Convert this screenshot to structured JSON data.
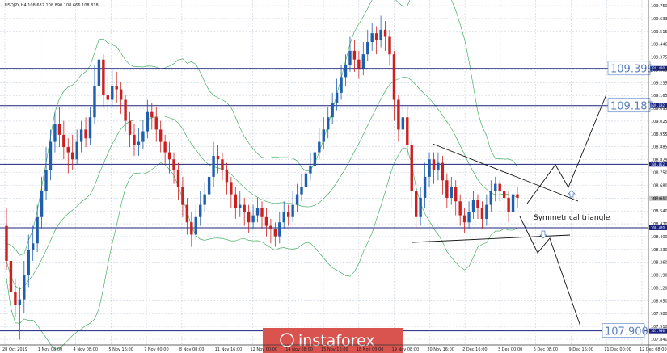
{
  "header": {
    "symbol_line": "USDJPY,H4  108.682 108.890 108.666 108.818"
  },
  "chart_data": {
    "type": "candlestick",
    "title": "",
    "ylim": [
      107.82,
      109.79
    ],
    "y_ticks": [
      "109.750",
      "109.633",
      "109.515",
      "109.446",
      "109.375",
      "109.305",
      "109.235",
      "109.165",
      "109.095",
      "109.025",
      "108.955",
      "108.885",
      "108.829",
      "108.750",
      "108.680",
      "108.610",
      "108.540",
      "108.470",
      "108.400",
      "108.330",
      "108.260",
      "108.190",
      "108.120",
      "108.050",
      "107.980",
      "107.910",
      "107.840"
    ],
    "x_ticks": [
      "28 Oct 2019",
      "1 Nov 08:00",
      "4 Nov 08:00",
      "5 Nov 16:00",
      "7 Nov 00:00",
      "8 Nov 08:00",
      "11 Nov 16:00",
      "12 Nov 00:00",
      "14 Nov 08:00",
      "15 Nov 16:00",
      "18 Nov 00:00",
      "19 Nov 08:00",
      "20 Nov 16:00",
      "2 Dec 16:00",
      "3 Dec 00:00",
      "6 Dec 08:00",
      "9 Dec 16:00",
      "11 Dec 00:00",
      "12 Dec 08:00"
    ],
    "horizontal_levels": [
      {
        "value": 109.399,
        "label": "109.399",
        "tag": "109.409"
      },
      {
        "value": 109.187,
        "label": "109.187",
        "tag": "109.192"
      },
      {
        "value": 108.852,
        "label": "",
        "tag": "108.852"
      },
      {
        "value": 108.489,
        "label": "",
        "tag": "108.489"
      },
      {
        "value": 107.9,
        "label": "107.900",
        "tag": "107.900"
      }
    ],
    "price_tag": {
      "value": 108.656,
      "label": "108.656"
    },
    "annotation": "Symmetrical triangle",
    "candles": [
      [
        108.5,
        108.3,
        108.6,
        108.25
      ],
      [
        108.3,
        108.12,
        108.38,
        108.05
      ],
      [
        108.12,
        108.05,
        108.2,
        107.98
      ],
      [
        108.05,
        108.08,
        108.15,
        107.85
      ],
      [
        108.08,
        108.22,
        108.3,
        108.0
      ],
      [
        108.22,
        108.36,
        108.45,
        108.15
      ],
      [
        108.36,
        108.4,
        108.5,
        108.3
      ],
      [
        108.4,
        108.55,
        108.62,
        108.35
      ],
      [
        108.55,
        108.7,
        108.78,
        108.48
      ],
      [
        108.7,
        108.82,
        108.95,
        108.65
      ],
      [
        108.82,
        108.98,
        109.05,
        108.76
      ],
      [
        108.98,
        109.08,
        109.15,
        108.92
      ],
      [
        109.08,
        109.02,
        109.18,
        108.95
      ],
      [
        109.02,
        108.95,
        109.1,
        108.88
      ],
      [
        108.95,
        108.92,
        109.0,
        108.8
      ],
      [
        108.92,
        108.88,
        109.02,
        108.82
      ],
      [
        108.88,
        108.98,
        109.05,
        108.85
      ],
      [
        108.98,
        109.05,
        109.1,
        108.92
      ],
      [
        109.05,
        109.0,
        109.12,
        108.95
      ],
      [
        109.0,
        109.12,
        109.18,
        108.96
      ],
      [
        109.12,
        109.3,
        109.42,
        109.08
      ],
      [
        109.3,
        109.45,
        109.48,
        109.2
      ],
      [
        109.45,
        109.25,
        109.48,
        109.18
      ],
      [
        109.25,
        109.22,
        109.36,
        109.15
      ],
      [
        109.22,
        109.3,
        109.4,
        109.18
      ],
      [
        109.3,
        109.28,
        109.38,
        109.2
      ],
      [
        109.28,
        109.22,
        109.32,
        109.14
      ],
      [
        109.22,
        109.1,
        109.25,
        109.04
      ],
      [
        109.1,
        109.02,
        109.15,
        108.95
      ],
      [
        109.02,
        108.96,
        109.08,
        108.9
      ],
      [
        108.96,
        108.98,
        109.06,
        108.9
      ],
      [
        108.98,
        109.04,
        109.1,
        108.94
      ],
      [
        109.04,
        109.15,
        109.22,
        109.0
      ],
      [
        109.15,
        109.12,
        109.2,
        109.05
      ],
      [
        109.12,
        109.05,
        109.18,
        108.98
      ],
      [
        109.05,
        108.98,
        109.1,
        108.92
      ],
      [
        108.98,
        108.92,
        109.02,
        108.85
      ],
      [
        108.92,
        108.88,
        108.98,
        108.8
      ],
      [
        108.88,
        108.82,
        108.92,
        108.74
      ],
      [
        108.82,
        108.72,
        108.86,
        108.65
      ],
      [
        108.72,
        108.62,
        108.78,
        108.55
      ],
      [
        108.62,
        108.52,
        108.66,
        108.45
      ],
      [
        108.52,
        108.45,
        108.58,
        108.38
      ],
      [
        108.45,
        108.55,
        108.62,
        108.42
      ],
      [
        108.55,
        108.62,
        108.7,
        108.5
      ],
      [
        108.62,
        108.68,
        108.75,
        108.58
      ],
      [
        108.68,
        108.78,
        108.88,
        108.62
      ],
      [
        108.78,
        108.9,
        108.98,
        108.72
      ],
      [
        108.9,
        108.88,
        108.96,
        108.8
      ],
      [
        108.88,
        108.82,
        108.92,
        108.76
      ],
      [
        108.82,
        108.75,
        108.86,
        108.68
      ],
      [
        108.75,
        108.68,
        108.78,
        108.6
      ],
      [
        108.68,
        108.6,
        108.72,
        108.54
      ],
      [
        108.6,
        108.62,
        108.7,
        108.55
      ],
      [
        108.62,
        108.58,
        108.66,
        108.5
      ],
      [
        108.58,
        108.52,
        108.62,
        108.46
      ],
      [
        108.52,
        108.56,
        108.62,
        108.48
      ],
      [
        108.56,
        108.6,
        108.66,
        108.52
      ],
      [
        108.6,
        108.55,
        108.64,
        108.48
      ],
      [
        108.55,
        108.5,
        108.6,
        108.44
      ],
      [
        108.5,
        108.48,
        108.54,
        108.4
      ],
      [
        108.48,
        108.44,
        108.52,
        108.38
      ],
      [
        108.44,
        108.52,
        108.58,
        108.4
      ],
      [
        108.52,
        108.58,
        108.64,
        108.48
      ],
      [
        108.58,
        108.55,
        108.62,
        108.5
      ],
      [
        108.55,
        108.62,
        108.7,
        108.52
      ],
      [
        108.62,
        108.68,
        108.74,
        108.58
      ],
      [
        108.68,
        108.72,
        108.8,
        108.64
      ],
      [
        108.72,
        108.8,
        108.86,
        108.68
      ],
      [
        108.8,
        108.84,
        108.92,
        108.76
      ],
      [
        108.84,
        108.92,
        109.0,
        108.8
      ],
      [
        108.92,
        108.98,
        109.06,
        108.88
      ],
      [
        108.98,
        109.05,
        109.12,
        108.94
      ],
      [
        109.05,
        109.12,
        109.18,
        109.0
      ],
      [
        109.12,
        109.2,
        109.26,
        109.08
      ],
      [
        109.2,
        109.26,
        109.34,
        109.16
      ],
      [
        109.26,
        109.35,
        109.42,
        109.22
      ],
      [
        109.35,
        109.42,
        109.48,
        109.3
      ],
      [
        109.42,
        109.5,
        109.58,
        109.38
      ],
      [
        109.5,
        109.45,
        109.56,
        109.38
      ],
      [
        109.45,
        109.4,
        109.5,
        109.34
      ],
      [
        109.4,
        109.48,
        109.55,
        109.36
      ],
      [
        109.48,
        109.55,
        109.62,
        109.44
      ],
      [
        109.55,
        109.6,
        109.66,
        109.5
      ],
      [
        109.6,
        109.56,
        109.64,
        109.48
      ],
      [
        109.56,
        109.62,
        109.7,
        109.52
      ],
      [
        109.62,
        109.58,
        109.67,
        109.5
      ],
      [
        109.58,
        109.48,
        109.62,
        109.42
      ],
      [
        109.48,
        109.22,
        109.5,
        109.1
      ],
      [
        109.22,
        109.05,
        109.25,
        108.98
      ],
      [
        109.05,
        109.12,
        109.2,
        108.98
      ],
      [
        109.12,
        108.96,
        109.18,
        108.9
      ],
      [
        108.96,
        108.7,
        108.99,
        108.6
      ],
      [
        108.7,
        108.55,
        108.75,
        108.48
      ],
      [
        108.55,
        108.66,
        108.72,
        108.5
      ],
      [
        108.66,
        108.78,
        108.86,
        108.6
      ],
      [
        108.78,
        108.88,
        108.92,
        108.72
      ],
      [
        108.88,
        108.82,
        108.92,
        108.74
      ],
      [
        108.82,
        108.86,
        108.92,
        108.76
      ],
      [
        108.86,
        108.76,
        108.9,
        108.68
      ],
      [
        108.76,
        108.66,
        108.8,
        108.6
      ],
      [
        108.66,
        108.72,
        108.78,
        108.62
      ],
      [
        108.72,
        108.64,
        108.76,
        108.56
      ],
      [
        108.64,
        108.56,
        108.68,
        108.5
      ],
      [
        108.56,
        108.52,
        108.6,
        108.46
      ],
      [
        108.52,
        108.58,
        108.64,
        108.48
      ],
      [
        108.58,
        108.65,
        108.7,
        108.54
      ],
      [
        108.65,
        108.6,
        108.68,
        108.54
      ],
      [
        108.6,
        108.54,
        108.64,
        108.48
      ],
      [
        108.54,
        108.62,
        108.68,
        108.5
      ],
      [
        108.62,
        108.7,
        108.76,
        108.58
      ],
      [
        108.7,
        108.74,
        108.78,
        108.64
      ],
      [
        108.74,
        108.7,
        108.76,
        108.64
      ],
      [
        108.7,
        108.66,
        108.74,
        108.6
      ],
      [
        108.66,
        108.58,
        108.7,
        108.52
      ],
      [
        108.58,
        108.68,
        108.72,
        108.54
      ],
      [
        108.68,
        108.66,
        108.72,
        108.6
      ]
    ]
  },
  "overlay": {
    "logo_text": "instaforex"
  },
  "colors": {
    "bull": "#1f5fae",
    "bear": "#cc1f1f",
    "band": "#2ea44f",
    "level": "#1a237e",
    "grid": "#c8d0dc",
    "tag_bg": "#1a237e",
    "logo_bg": "#d9534f"
  }
}
